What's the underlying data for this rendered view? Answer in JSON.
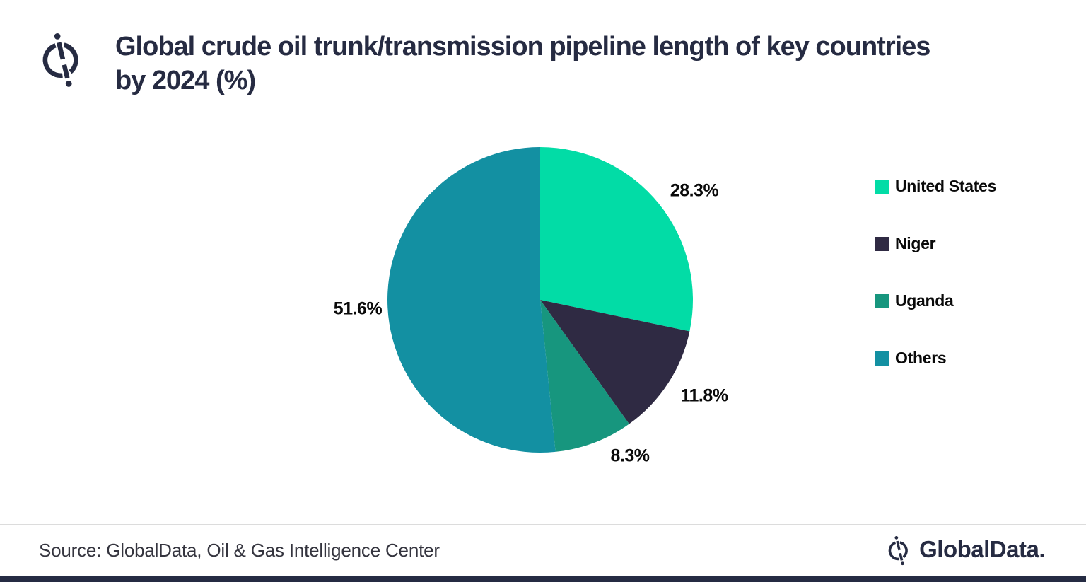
{
  "header": {
    "title_lines": [
      "Global crude oil trunk/transmission pipeline length of key countries",
      "by 2024 (%)"
    ],
    "brand_icon": "globaldata-mark"
  },
  "chart_data": {
    "type": "pie",
    "title": "Global crude oil trunk/transmission pipeline length of key countries by 2024 (%)",
    "unit": "%",
    "start_angle_deg": 0,
    "direction": "clockwise",
    "legend_position": "right",
    "slices": [
      {
        "id": "united-states",
        "name": "United States",
        "value": 28.3,
        "label": "28.3%",
        "color": "#02dca6"
      },
      {
        "id": "niger",
        "name": "Niger",
        "value": 11.8,
        "label": "11.8%",
        "color": "#2f2a43"
      },
      {
        "id": "uganda",
        "name": "Uganda",
        "value": 8.3,
        "label": "8.3%",
        "color": "#17967e"
      },
      {
        "id": "others",
        "name": "Others",
        "value": 51.6,
        "label": "51.6%",
        "color": "#1390a2"
      }
    ]
  },
  "footer": {
    "source": "Source: GlobalData, Oil & Gas Intelligence Center",
    "brand_name": "GlobalData.",
    "brand_icon": "globaldata-mark"
  },
  "colors": {
    "brand_navy": "#262b42",
    "label_text": "#0a0a0a",
    "divider": "#dcdcdc",
    "background": "#ffffff"
  }
}
